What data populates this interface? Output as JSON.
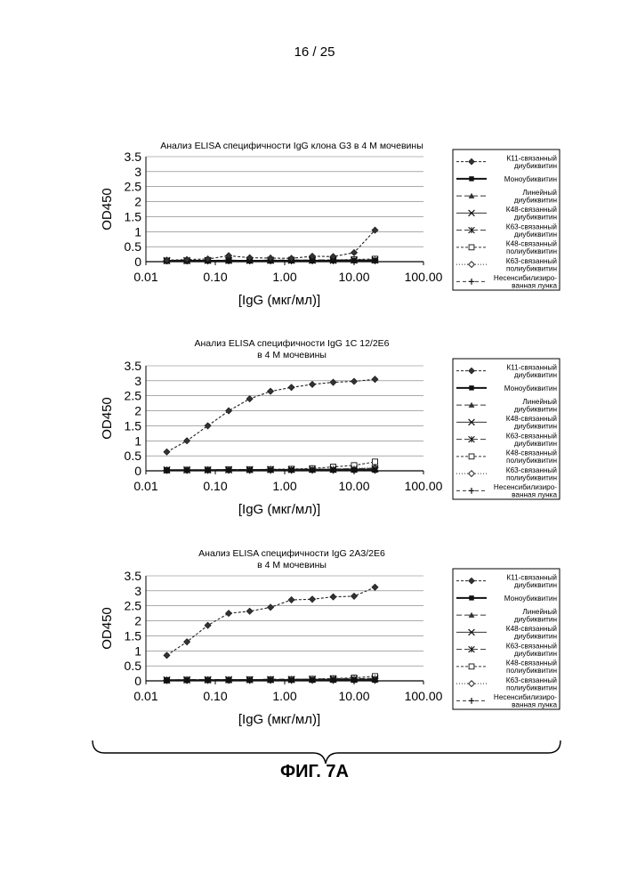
{
  "page": {
    "page_number": "16 / 25",
    "figure_label": "ФИГ. 7А"
  },
  "legend_entries": [
    {
      "lines": [
        "К11-связанный",
        "диубиквитин"
      ],
      "marker": "filled-diamond",
      "dash": "3,2",
      "stroke": "#222222"
    },
    {
      "lines": [
        "Моноубиквитин"
      ],
      "marker": "filled-square",
      "dash": "",
      "stroke": "#111111"
    },
    {
      "lines": [
        "Линейный",
        "диубиквитин"
      ],
      "marker": "filled-triangle",
      "dash": "6,3",
      "stroke": "#333333"
    },
    {
      "lines": [
        "К48-связанный",
        "диубиквитин"
      ],
      "marker": "x",
      "dash": "",
      "stroke": "#333333"
    },
    {
      "lines": [
        "К63-связанный",
        "диубиквитин"
      ],
      "marker": "asterisk",
      "dash": "6,3",
      "stroke": "#333333"
    },
    {
      "lines": [
        "К48-связанный",
        "полиубиквитин"
      ],
      "marker": "open-square",
      "dash": "3,2",
      "stroke": "#333333"
    },
    {
      "lines": [
        "К63-связанный",
        "полиубиквитин"
      ],
      "marker": "open-diamond",
      "dash": "1,2",
      "stroke": "#333333"
    },
    {
      "lines": [
        "Несенсибилизиро-",
        "ванная лунка"
      ],
      "marker": "plus",
      "dash": "4,3",
      "stroke": "#333333"
    }
  ],
  "chart_data": [
    {
      "type": "line",
      "title_lines": [
        "Анализ ELISA специфичности IgG клона G3 в 4 М мочевины"
      ],
      "ylabel": "OD450",
      "xlabel": "[IgG (мкг/мл)]",
      "x_scale": "log",
      "xlim": [
        0.01,
        100
      ],
      "ylim": [
        0,
        3.5
      ],
      "x_ticks": [
        "0.01",
        "0.10",
        "1.00",
        "10.00",
        "100.00"
      ],
      "y_ticks": [
        "0",
        "0.5",
        "1",
        "1.5",
        "2",
        "2.5",
        "3",
        "3.5"
      ],
      "grid": "horizontal",
      "legend_position": "right",
      "x": [
        0.02,
        0.039,
        0.078,
        0.156,
        0.313,
        0.625,
        1.25,
        2.5,
        5,
        10,
        20
      ],
      "series": [
        {
          "name": "К11-связанный диубиквитин",
          "values": [
            0.05,
            0.07,
            0.09,
            0.2,
            0.13,
            0.12,
            0.11,
            0.18,
            0.17,
            0.3,
            1.05
          ]
        },
        {
          "name": "Моноубиквитин",
          "values": [
            0.03,
            0.03,
            0.03,
            0.03,
            0.03,
            0.03,
            0.03,
            0.03,
            0.03,
            0.03,
            0.03
          ]
        },
        {
          "name": "Линейный диубиквитин",
          "values": [
            0.04,
            0.04,
            0.04,
            0.05,
            0.04,
            0.04,
            0.05,
            0.05,
            0.06,
            0.06,
            0.07
          ]
        },
        {
          "name": "К48-связанный диубиквитин",
          "values": [
            0.03,
            0.03,
            0.04,
            0.04,
            0.04,
            0.04,
            0.04,
            0.04,
            0.04,
            0.05,
            0.05
          ]
        },
        {
          "name": "К63-связанный диубиквитин",
          "values": [
            0.04,
            0.04,
            0.04,
            0.04,
            0.04,
            0.05,
            0.05,
            0.05,
            0.05,
            0.06,
            0.06
          ]
        },
        {
          "name": "К48-связанный полиубиквитин",
          "values": [
            0.03,
            0.03,
            0.04,
            0.04,
            0.04,
            0.04,
            0.05,
            0.05,
            0.06,
            0.07,
            0.09
          ]
        },
        {
          "name": "К63-связанный полиубиквитин",
          "values": [
            0.03,
            0.03,
            0.03,
            0.04,
            0.04,
            0.04,
            0.04,
            0.04,
            0.05,
            0.05,
            0.06
          ]
        },
        {
          "name": "Несенсибилизированная лунка",
          "values": [
            0.02,
            0.02,
            0.02,
            0.02,
            0.02,
            0.02,
            0.02,
            0.02,
            0.02,
            0.02,
            0.02
          ]
        }
      ]
    },
    {
      "type": "line",
      "title_lines": [
        "Анализ ELISA специфичности IgG 1C 12/2E6",
        "в 4 М мочевины"
      ],
      "ylabel": "OD450",
      "xlabel": "[IgG (мкг/мл)]",
      "x_scale": "log",
      "xlim": [
        0.01,
        100
      ],
      "ylim": [
        0,
        3.5
      ],
      "x_ticks": [
        "0.01",
        "0.10",
        "1.00",
        "10.00",
        "100.00"
      ],
      "y_ticks": [
        "0",
        "0.5",
        "1",
        "1.5",
        "2",
        "2.5",
        "3",
        "3.5"
      ],
      "grid": "horizontal",
      "legend_position": "right",
      "x": [
        0.02,
        0.039,
        0.078,
        0.156,
        0.313,
        0.625,
        1.25,
        2.5,
        5,
        10,
        20
      ],
      "series": [
        {
          "name": "К11-связанный диубиквитин",
          "values": [
            0.63,
            1.0,
            1.5,
            2.0,
            2.4,
            2.65,
            2.78,
            2.88,
            2.95,
            2.98,
            3.05
          ]
        },
        {
          "name": "Моноубиквитин",
          "values": [
            0.02,
            0.02,
            0.02,
            0.02,
            0.02,
            0.02,
            0.02,
            0.02,
            0.02,
            0.02,
            0.02
          ]
        },
        {
          "name": "Линейный диубиквитин",
          "values": [
            0.03,
            0.03,
            0.03,
            0.04,
            0.04,
            0.04,
            0.05,
            0.05,
            0.06,
            0.07,
            0.08
          ]
        },
        {
          "name": "К48-связанный диубиквитин",
          "values": [
            0.03,
            0.03,
            0.03,
            0.03,
            0.04,
            0.04,
            0.04,
            0.05,
            0.05,
            0.06,
            0.06
          ]
        },
        {
          "name": "К63-связанный диубиквитин",
          "values": [
            0.03,
            0.03,
            0.03,
            0.04,
            0.04,
            0.04,
            0.05,
            0.05,
            0.06,
            0.06,
            0.07
          ]
        },
        {
          "name": "К48-связанный полиубиквитин",
          "values": [
            0.02,
            0.03,
            0.03,
            0.04,
            0.04,
            0.05,
            0.06,
            0.08,
            0.13,
            0.18,
            0.3
          ]
        },
        {
          "name": "К63-связанный полиубиквитин",
          "values": [
            0.02,
            0.02,
            0.03,
            0.03,
            0.03,
            0.04,
            0.04,
            0.05,
            0.06,
            0.08,
            0.1
          ]
        },
        {
          "name": "Несенсибилизированная лунка",
          "values": [
            0.01,
            0.01,
            0.01,
            0.01,
            0.01,
            0.01,
            0.01,
            0.01,
            0.01,
            0.01,
            0.01
          ]
        }
      ]
    },
    {
      "type": "line",
      "title_lines": [
        "Анализ ELISA специфичности IgG 2A3/2E6",
        "в 4 М мочевины"
      ],
      "ylabel": "OD450",
      "xlabel": "[IgG (мкг/мл)]",
      "x_scale": "log",
      "xlim": [
        0.01,
        100
      ],
      "ylim": [
        0,
        3.5
      ],
      "x_ticks": [
        "0.01",
        "0.10",
        "1.00",
        "10.00",
        "100.00"
      ],
      "y_ticks": [
        "0",
        "0.5",
        "1",
        "1.5",
        "2",
        "2.5",
        "3",
        "3.5"
      ],
      "grid": "horizontal",
      "legend_position": "right",
      "x": [
        0.02,
        0.039,
        0.078,
        0.156,
        0.313,
        0.625,
        1.25,
        2.5,
        5,
        10,
        20
      ],
      "series": [
        {
          "name": "К11-связанный диубиквитин",
          "values": [
            0.85,
            1.3,
            1.85,
            2.25,
            2.32,
            2.45,
            2.7,
            2.72,
            2.8,
            2.82,
            3.12
          ]
        },
        {
          "name": "Моноубиквитин",
          "values": [
            0.02,
            0.02,
            0.02,
            0.02,
            0.02,
            0.02,
            0.02,
            0.02,
            0.02,
            0.02,
            0.02
          ]
        },
        {
          "name": "Линейный диубиквитин",
          "values": [
            0.03,
            0.03,
            0.04,
            0.04,
            0.04,
            0.05,
            0.05,
            0.05,
            0.06,
            0.06,
            0.07
          ]
        },
        {
          "name": "К48-связанный диубиквитин",
          "values": [
            0.03,
            0.03,
            0.03,
            0.04,
            0.04,
            0.04,
            0.04,
            0.05,
            0.05,
            0.05,
            0.06
          ]
        },
        {
          "name": "К63-связанный диубиквитин",
          "values": [
            0.03,
            0.04,
            0.04,
            0.04,
            0.04,
            0.05,
            0.05,
            0.06,
            0.07,
            0.07,
            0.08
          ]
        },
        {
          "name": "К48-связанный полиубиквитин",
          "values": [
            0.02,
            0.03,
            0.03,
            0.03,
            0.04,
            0.04,
            0.05,
            0.06,
            0.08,
            0.1,
            0.15
          ]
        },
        {
          "name": "К63-связанный полиубиквитин",
          "values": [
            0.02,
            0.02,
            0.03,
            0.03,
            0.03,
            0.04,
            0.04,
            0.05,
            0.06,
            0.07,
            0.08
          ]
        },
        {
          "name": "Несенсибилизированная лунка",
          "values": [
            0.01,
            0.01,
            0.01,
            0.01,
            0.01,
            0.01,
            0.01,
            0.01,
            0.01,
            0.01,
            0.01
          ]
        }
      ]
    }
  ]
}
